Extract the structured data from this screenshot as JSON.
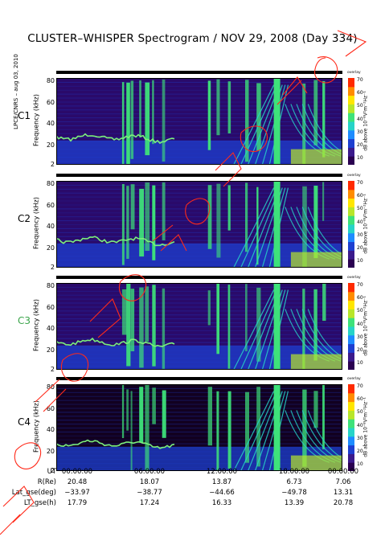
{
  "title": "CLUSTER–WHISPER Spectrogram / NOV 29, 2008 (Day 334)",
  "side_label": "LPCE/CNRS – aug 03, 2010",
  "colors": {
    "spectrum": [
      "#2a0050",
      "#3b1a8c",
      "#1e3fd0",
      "#1e8cff",
      "#27d4c8",
      "#3ee27a",
      "#b8e62a",
      "#ffe600",
      "#ff8c00",
      "#ff2a00"
    ]
  },
  "chart_data": {
    "type": "heatmap",
    "x_ticks": [
      "00:00:00",
      "06:00:00",
      "12:00:00",
      "18:00:00",
      "00:00:00"
    ],
    "colorbar": {
      "ticks": [
        "70",
        "60",
        "50",
        "40",
        "30",
        "20",
        "10"
      ],
      "label": "dB above 10⁻⁸V²m⁻²Hz⁻¹",
      "range": [
        5,
        72
      ],
      "top_label": "overlay"
    },
    "panels": [
      {
        "name": "C1",
        "ylabel": "Frequency (kHz)",
        "yticks": [
          "80",
          "60",
          "40",
          "20",
          "2"
        ],
        "ylim": [
          2,
          83
        ],
        "label_color": "#000000"
      },
      {
        "name": "C2",
        "ylabel": "Frequency (kHz)",
        "yticks": [
          "80",
          "60",
          "40",
          "20",
          "2"
        ],
        "ylim": [
          2,
          83
        ],
        "label_color": "#000000"
      },
      {
        "name": "C3",
        "ylabel": "Frequency (kHz)",
        "yticks": [
          "80",
          "60",
          "40",
          "20",
          "2"
        ],
        "ylim": [
          2,
          83
        ],
        "label_color": "#3aa44a"
      },
      {
        "name": "C4",
        "ylabel": "Frequency (kHz)",
        "yticks": [
          "80",
          "60",
          "40",
          "20",
          "2"
        ],
        "ylim": [
          2,
          83
        ],
        "label_color": "#000000"
      }
    ],
    "ephemeris": [
      {
        "label": "UT",
        "values": [
          "00:00:00",
          "06:00:00",
          "12:00:00",
          "18:00:00",
          "00:00:00"
        ]
      },
      {
        "label": "R(Re)",
        "values": [
          "20.48",
          "18.07",
          "13.87",
          "6.73",
          "7.06"
        ]
      },
      {
        "label": "Lat_gse(deg)",
        "values": [
          "−33.97",
          "−38.77",
          "−44.66",
          "−49.78",
          "13.31"
        ]
      },
      {
        "label": "LT_gse(h)",
        "values": [
          "17.79",
          "17.24",
          "16.33",
          "13.39",
          "20.78"
        ]
      }
    ]
  }
}
